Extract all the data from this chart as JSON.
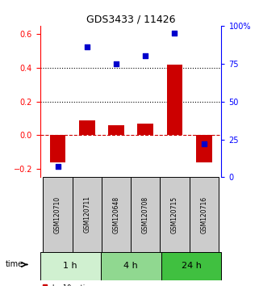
{
  "title": "GDS3433 / 11426",
  "samples": [
    "GSM120710",
    "GSM120711",
    "GSM120648",
    "GSM120708",
    "GSM120715",
    "GSM120716"
  ],
  "log10_ratio": [
    -0.16,
    0.09,
    0.06,
    0.07,
    0.42,
    -0.16
  ],
  "percentile_rank": [
    7,
    86,
    75,
    80,
    95,
    22
  ],
  "time_groups": [
    {
      "label": "1 h",
      "samples": [
        0,
        1
      ],
      "color": "#d0f0d0"
    },
    {
      "label": "4 h",
      "samples": [
        2,
        3
      ],
      "color": "#90d890"
    },
    {
      "label": "24 h",
      "samples": [
        4,
        5
      ],
      "color": "#40c040"
    }
  ],
  "bar_color": "#cc0000",
  "dot_color": "#0000cc",
  "ylim_left": [
    -0.25,
    0.65
  ],
  "ylim_right": [
    0,
    100
  ],
  "yticks_left": [
    -0.2,
    0.0,
    0.2,
    0.4,
    0.6
  ],
  "yticks_right": [
    0,
    25,
    50,
    75,
    100
  ],
  "ytick_labels_right": [
    "0",
    "25",
    "50",
    "75",
    "100%"
  ],
  "hlines": [
    0.4,
    0.2
  ],
  "zero_line_color": "#cc0000",
  "grid_color": "#000000",
  "bg_color": "#ffffff",
  "sample_box_color": "#cccccc",
  "bar_width": 0.55
}
